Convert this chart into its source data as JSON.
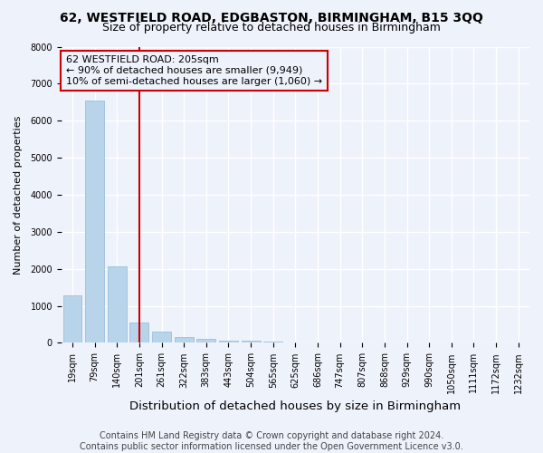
{
  "title1": "62, WESTFIELD ROAD, EDGBASTON, BIRMINGHAM, B15 3QQ",
  "title2": "Size of property relative to detached houses in Birmingham",
  "xlabel": "Distribution of detached houses by size in Birmingham",
  "ylabel": "Number of detached properties",
  "bar_labels": [
    "19sqm",
    "79sqm",
    "140sqm",
    "201sqm",
    "261sqm",
    "322sqm",
    "383sqm",
    "443sqm",
    "504sqm",
    "565sqm",
    "625sqm",
    "686sqm",
    "747sqm",
    "807sqm",
    "868sqm",
    "929sqm",
    "990sqm",
    "1050sqm",
    "1111sqm",
    "1172sqm",
    "1232sqm"
  ],
  "bar_heights": [
    1280,
    6550,
    2070,
    550,
    310,
    160,
    100,
    65,
    50,
    30,
    12,
    5,
    3,
    2,
    1,
    1,
    1,
    1,
    0,
    0,
    0
  ],
  "bar_color": "#b8d4ea",
  "bar_edge_color": "#90b8d8",
  "vline_x_index": 3.0,
  "vline_color": "#cc0000",
  "annotation_line1": "62 WESTFIELD ROAD: 205sqm",
  "annotation_line2": "← 90% of detached houses are smaller (9,949)",
  "annotation_line3": "10% of semi-detached houses are larger (1,060) →",
  "annotation_box_color": "#cc0000",
  "annotation_bg": "#eef2fb",
  "ylim": [
    0,
    8000
  ],
  "yticks": [
    0,
    1000,
    2000,
    3000,
    4000,
    5000,
    6000,
    7000,
    8000
  ],
  "bg_color": "#eef2fb",
  "grid_color": "#ffffff",
  "footer_text": "Contains HM Land Registry data © Crown copyright and database right 2024.\nContains public sector information licensed under the Open Government Licence v3.0.",
  "title1_fontsize": 10,
  "title2_fontsize": 9,
  "xlabel_fontsize": 9.5,
  "ylabel_fontsize": 8,
  "tick_fontsize": 7,
  "footer_fontsize": 7,
  "ann_fontsize": 8
}
